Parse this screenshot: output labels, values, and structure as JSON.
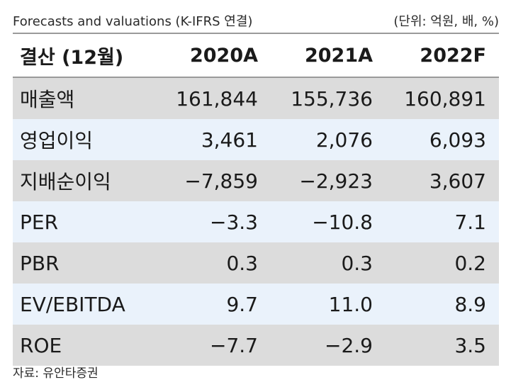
{
  "header": {
    "title": "Forecasts and valuations (K-IFRS 연결)",
    "unit": "(단위: 억원, 배, %)"
  },
  "table": {
    "columns": [
      "결산 (12월)",
      "2020A",
      "2021A",
      "2022F"
    ],
    "rows": [
      {
        "label": "매출액",
        "values": [
          "161,844",
          "155,736",
          "160,891"
        ]
      },
      {
        "label": "영업이익",
        "values": [
          "3,461",
          "2,076",
          "6,093"
        ]
      },
      {
        "label": "지배순이익",
        "values": [
          "−7,859",
          "−2,923",
          "3,607"
        ]
      },
      {
        "label": "PER",
        "values": [
          "−3.3",
          "−10.8",
          "7.1"
        ]
      },
      {
        "label": "PBR",
        "values": [
          "0.3",
          "0.3",
          "0.2"
        ]
      },
      {
        "label": "EV/EBITDA",
        "values": [
          "9.7",
          "11.0",
          "8.9"
        ]
      },
      {
        "label": "ROE",
        "values": [
          "−7.7",
          "−2.9",
          "3.5"
        ]
      }
    ]
  },
  "source": "자료: 유안타증권",
  "colors": {
    "row_gray": "#dcdcdc",
    "row_blue": "#eaf2fb",
    "rule": "#9a9a9a"
  }
}
